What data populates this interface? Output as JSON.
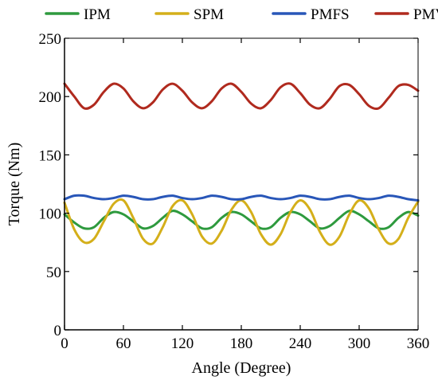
{
  "chart_data": {
    "type": "line",
    "title": "",
    "xlabel": "Angle (Degree)",
    "ylabel": "Torque (Nm)",
    "xlim": [
      0,
      360
    ],
    "ylim": [
      0,
      250
    ],
    "xticks": [
      0,
      60,
      120,
      180,
      240,
      300,
      360
    ],
    "yticks": [
      0,
      50,
      100,
      150,
      200,
      250
    ],
    "grid": false,
    "legend_position": "top",
    "x": [
      0,
      10,
      20,
      30,
      40,
      50,
      60,
      70,
      80,
      90,
      100,
      110,
      120,
      130,
      140,
      150,
      160,
      170,
      180,
      190,
      200,
      210,
      220,
      230,
      240,
      250,
      260,
      270,
      280,
      290,
      300,
      310,
      320,
      330,
      340,
      350,
      360
    ],
    "series": [
      {
        "name": "IPM",
        "color": "#2e9a3e",
        "values": [
          99,
          92,
          87,
          88,
          96,
          101,
          99,
          93,
          87,
          89,
          96,
          102,
          99,
          93,
          87,
          88,
          96,
          101,
          99,
          93,
          87,
          88,
          96,
          101,
          99,
          93,
          87,
          89,
          96,
          102,
          99,
          93,
          87,
          88,
          96,
          101,
          98
        ]
      },
      {
        "name": "SPM",
        "color": "#d4af1a",
        "values": [
          109,
          86,
          75,
          78,
          93,
          108,
          111,
          96,
          78,
          74,
          88,
          106,
          111,
          99,
          80,
          74,
          85,
          103,
          111,
          101,
          82,
          73,
          82,
          101,
          111,
          103,
          84,
          73,
          80,
          99,
          111,
          104,
          86,
          74,
          78,
          96,
          110
        ]
      },
      {
        "name": "PMFS",
        "color": "#2856b8",
        "values": [
          112,
          115,
          115,
          113,
          112,
          113,
          115,
          114,
          112,
          112,
          114,
          115,
          113,
          112,
          113,
          115,
          114,
          112,
          112,
          114,
          115,
          113,
          112,
          113,
          115,
          114,
          112,
          112,
          114,
          115,
          113,
          112,
          113,
          115,
          114,
          112,
          111
        ]
      },
      {
        "name": "PMV",
        "color": "#b02a1e",
        "values": [
          211,
          200,
          190,
          193,
          204,
          211,
          207,
          196,
          190,
          195,
          206,
          211,
          205,
          195,
          190,
          196,
          207,
          211,
          204,
          194,
          190,
          197,
          208,
          211,
          203,
          193,
          190,
          198,
          209,
          210,
          202,
          192,
          190,
          199,
          209,
          210,
          205
        ]
      }
    ]
  }
}
